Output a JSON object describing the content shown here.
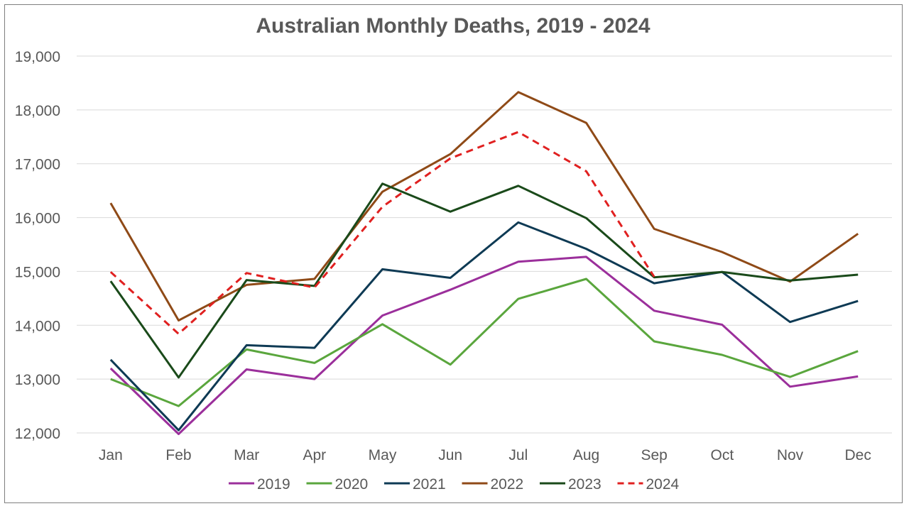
{
  "chart_data": {
    "type": "line",
    "title": "Australian Monthly Deaths, 2019 - 2024",
    "categories": [
      "Jan",
      "Feb",
      "Mar",
      "Apr",
      "May",
      "Jun",
      "Jul",
      "Aug",
      "Sep",
      "Oct",
      "Nov",
      "Dec"
    ],
    "ylim": [
      12000,
      19000
    ],
    "yticks": [
      12000,
      13000,
      14000,
      15000,
      16000,
      17000,
      18000,
      19000
    ],
    "ytick_labels": [
      "12,000",
      "13,000",
      "14,000",
      "15,000",
      "16,000",
      "17,000",
      "18,000",
      "19,000"
    ],
    "grid": true,
    "legend_position": "bottom",
    "series": [
      {
        "name": "2019",
        "color": "#9b2f9b",
        "dashed": false,
        "values": [
          13200,
          11980,
          13180,
          13000,
          14180,
          14660,
          15180,
          15270,
          14270,
          14010,
          12860,
          13050
        ]
      },
      {
        "name": "2020",
        "color": "#5aa63d",
        "dashed": false,
        "values": [
          13000,
          12500,
          13550,
          13300,
          14020,
          13270,
          14490,
          14860,
          13700,
          13450,
          13040,
          13520
        ]
      },
      {
        "name": "2021",
        "color": "#0e3a54",
        "dashed": false,
        "values": [
          13360,
          12050,
          13630,
          13580,
          15040,
          14880,
          15910,
          15420,
          14780,
          14990,
          14060,
          14450
        ]
      },
      {
        "name": "2022",
        "color": "#8f4a17",
        "dashed": false,
        "values": [
          16270,
          14090,
          14750,
          14860,
          16480,
          17180,
          18330,
          17760,
          15790,
          15360,
          14810,
          15700
        ]
      },
      {
        "name": "2023",
        "color": "#1a4a1a",
        "dashed": false,
        "values": [
          14820,
          13030,
          14840,
          14730,
          16630,
          16110,
          16590,
          15990,
          14890,
          14990,
          14830,
          14940
        ]
      },
      {
        "name": "2024",
        "color": "#e02020",
        "dashed": true,
        "values": [
          14990,
          13840,
          14970,
          14700,
          16200,
          17100,
          17590,
          16860,
          14900,
          null,
          null,
          null
        ]
      }
    ]
  }
}
